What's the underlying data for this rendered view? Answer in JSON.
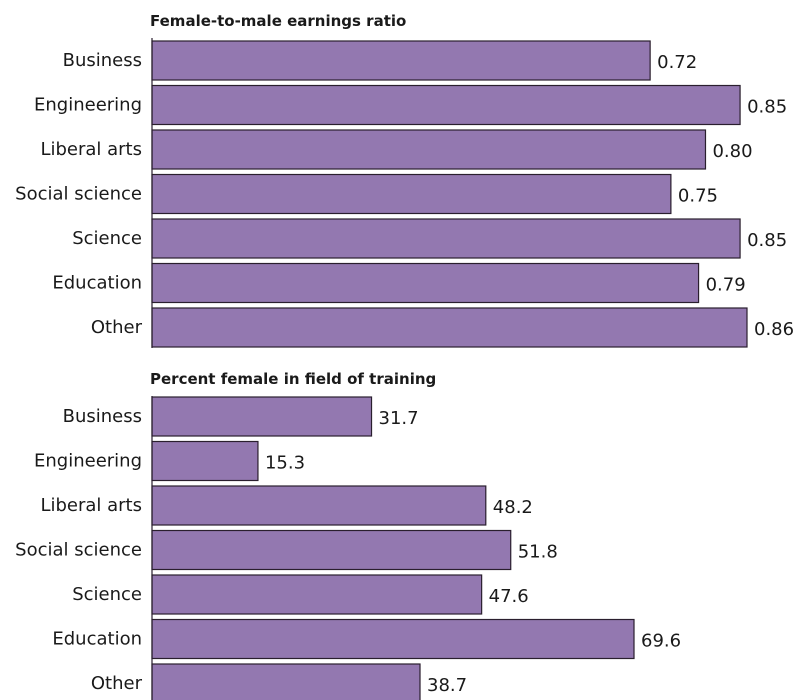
{
  "chart_data": [
    {
      "type": "bar",
      "orientation": "horizontal",
      "title": "Female-to-male earnings ratio",
      "categories": [
        "Business",
        "Engineering",
        "Liberal arts",
        "Social science",
        "Science",
        "Education",
        "Other"
      ],
      "values": [
        0.72,
        0.85,
        0.8,
        0.75,
        0.85,
        0.79,
        0.86
      ],
      "value_labels": [
        "0.72",
        "0.85",
        "0.80",
        "0.75",
        "0.85",
        "0.79",
        "0.86"
      ],
      "xlim": [
        0,
        0.86
      ],
      "grid": false,
      "bar_color": "#9378b0"
    },
    {
      "type": "bar",
      "orientation": "horizontal",
      "title": "Percent female in field of training",
      "categories": [
        "Business",
        "Engineering",
        "Liberal arts",
        "Social science",
        "Science",
        "Education",
        "Other"
      ],
      "values": [
        31.7,
        15.3,
        48.2,
        51.8,
        47.6,
        69.6,
        38.7
      ],
      "value_labels": [
        "31.7",
        "15.3",
        "48.2",
        "51.8",
        "47.6",
        "69.6",
        "38.7"
      ],
      "xlim": [
        0,
        69.6
      ],
      "grid": false,
      "bar_color": "#9378b0"
    }
  ]
}
